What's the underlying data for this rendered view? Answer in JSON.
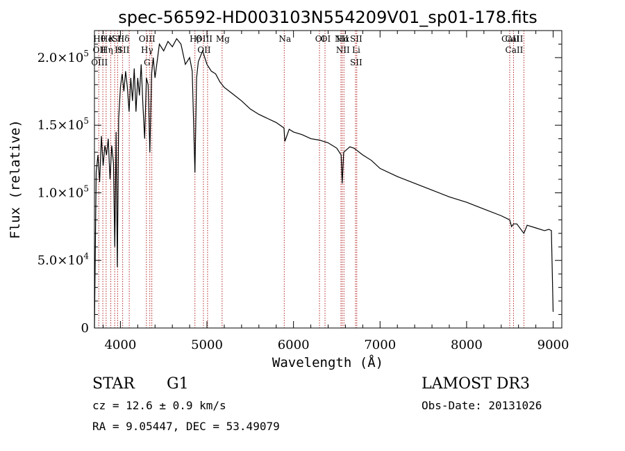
{
  "chart_data": {
    "type": "line",
    "title": "spec-56592-HD003103N554209V01_sp01-178.fits",
    "xlabel": "Wavelength (Å)",
    "ylabel": "Flux (relative)",
    "xlim": [
      3700,
      9100
    ],
    "ylim": [
      0,
      220000
    ],
    "x_ticks": [
      {
        "value": 4000,
        "label": "4000"
      },
      {
        "value": 5000,
        "label": "5000"
      },
      {
        "value": 6000,
        "label": "6000"
      },
      {
        "value": 7000,
        "label": "7000"
      },
      {
        "value": 8000,
        "label": "8000"
      },
      {
        "value": 9000,
        "label": "9000"
      }
    ],
    "y_ticks": [
      {
        "value": 0,
        "mantissa": "0",
        "exp": ""
      },
      {
        "value": 50000,
        "mantissa": "5.0×10",
        "exp": "4"
      },
      {
        "value": 100000,
        "mantissa": "1.0×10",
        "exp": "5"
      },
      {
        "value": 150000,
        "mantissa": "1.5×10",
        "exp": "5"
      },
      {
        "value": 200000,
        "mantissa": "2.0×10",
        "exp": "5"
      }
    ],
    "series": [
      {
        "name": "spectrum",
        "x": [
          3700,
          3720,
          3740,
          3760,
          3780,
          3800,
          3820,
          3840,
          3860,
          3880,
          3900,
          3920,
          3935,
          3950,
          3965,
          3980,
          4000,
          4020,
          4040,
          4060,
          4080,
          4100,
          4120,
          4140,
          4160,
          4180,
          4200,
          4220,
          4240,
          4260,
          4280,
          4300,
          4320,
          4340,
          4360,
          4380,
          4400,
          4450,
          4500,
          4550,
          4600,
          4650,
          4700,
          4750,
          4800,
          4830,
          4861,
          4880,
          4900,
          4950,
          5000,
          5050,
          5100,
          5150,
          5200,
          5300,
          5400,
          5500,
          5600,
          5700,
          5800,
          5890,
          5900,
          5950,
          6000,
          6100,
          6200,
          6300,
          6400,
          6500,
          6550,
          6563,
          6580,
          6650,
          6700,
          6800,
          6900,
          7000,
          7200,
          7400,
          7600,
          7800,
          8000,
          8200,
          8400,
          8498,
          8520,
          8542,
          8580,
          8662,
          8700,
          8800,
          8900,
          8950,
          8980,
          9000
        ],
        "y": [
          0,
          115000,
          128000,
          108000,
          142000,
          120000,
          135000,
          128000,
          140000,
          110000,
          135000,
          122000,
          60000,
          145000,
          45000,
          155000,
          178000,
          188000,
          175000,
          190000,
          178000,
          160000,
          185000,
          168000,
          192000,
          160000,
          185000,
          172000,
          195000,
          165000,
          140000,
          185000,
          180000,
          130000,
          188000,
          200000,
          185000,
          210000,
          205000,
          212000,
          208000,
          214000,
          210000,
          195000,
          200000,
          190000,
          115000,
          185000,
          197000,
          205000,
          195000,
          190000,
          188000,
          182000,
          178000,
          173000,
          168000,
          162000,
          158000,
          155000,
          152000,
          148000,
          138000,
          147000,
          145000,
          143000,
          140000,
          139000,
          137000,
          133000,
          128000,
          107000,
          130000,
          134000,
          133000,
          128000,
          124000,
          118000,
          112000,
          107000,
          102000,
          97000,
          93000,
          88000,
          83000,
          80000,
          75000,
          77000,
          77000,
          70000,
          76000,
          74000,
          72000,
          73000,
          72000,
          12000
        ]
      }
    ],
    "lines": [
      {
        "x": 3750,
        "labels": [
          "Hθ",
          "OII",
          "OIII"
        ]
      },
      {
        "x": 3797,
        "labels": []
      },
      {
        "x": 3835,
        "labels": [
          "He",
          "Hη"
        ]
      },
      {
        "x": 3889,
        "labels": [
          "K"
        ]
      },
      {
        "x": 3934,
        "labels": []
      },
      {
        "x": 3968,
        "labels": [
          "SII",
          "H"
        ]
      },
      {
        "x": 4026,
        "labels": [
          "Hδ",
          "SII"
        ]
      },
      {
        "x": 4102,
        "labels": []
      },
      {
        "x": 4300,
        "labels": [
          "OIII",
          "Hγ",
          "G"
        ]
      },
      {
        "x": 4340,
        "labels": []
      },
      {
        "x": 4363,
        "labels": []
      },
      {
        "x": 4861,
        "labels": [
          "Hβ"
        ]
      },
      {
        "x": 4959,
        "labels": [
          "OIII",
          "OII"
        ]
      },
      {
        "x": 5007,
        "labels": []
      },
      {
        "x": 5175,
        "labels": [
          "Mg"
        ]
      },
      {
        "x": 5893,
        "labels": [
          "Na"
        ]
      },
      {
        "x": 6300,
        "labels": [
          "OI"
        ]
      },
      {
        "x": 6364,
        "labels": [
          "OI"
        ]
      },
      {
        "x": 6548,
        "labels": [
          "NII"
        ]
      },
      {
        "x": 6563,
        "labels": [
          "Hα",
          "NII"
        ]
      },
      {
        "x": 6583,
        "labels": []
      },
      {
        "x": 6716,
        "labels": [
          "SII",
          "Li",
          "SII"
        ]
      },
      {
        "x": 6731,
        "labels": []
      },
      {
        "x": 8498,
        "labels": [
          "CaII"
        ]
      },
      {
        "x": 8542,
        "labels": [
          "CaII",
          "CaII"
        ]
      },
      {
        "x": 8662,
        "labels": []
      }
    ]
  },
  "info": {
    "class_label": "STAR",
    "subclass": "G1",
    "survey": "LAMOST DR3",
    "cz_text": "cz = 12.6 ± 0.9 km/s",
    "obs_date": "Obs-Date: 20131026",
    "radec": "RA =   9.05447, DEC =  53.49079"
  }
}
